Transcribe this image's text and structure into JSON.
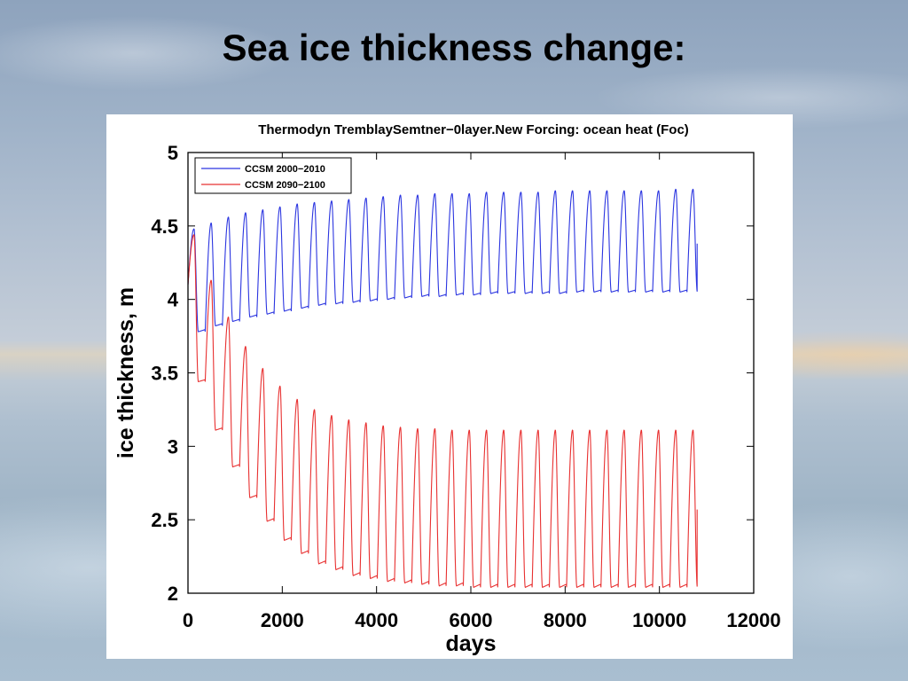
{
  "slide": {
    "title": "Sea ice thickness change:"
  },
  "colors": {
    "series_1": "#2b35e0",
    "series_2": "#e83030"
  },
  "chart_data": {
    "type": "line",
    "title": "Thermodyn TremblaySemtner−0layer.New Forcing: ocean heat (Foc)",
    "xlabel": "days",
    "ylabel": "ice thickness, m",
    "xlim": [
      0,
      12000
    ],
    "ylim": [
      2,
      5
    ],
    "xticks": [
      0,
      2000,
      4000,
      6000,
      8000,
      10000,
      12000
    ],
    "yticks": [
      2,
      2.5,
      3,
      3.5,
      4,
      4.5,
      5
    ],
    "xtick_labels": [
      "0",
      "2000",
      "4000",
      "6000",
      "8000",
      "10000",
      "12000"
    ],
    "ytick_labels": [
      "2",
      "2.5",
      "3",
      "3.5",
      "4",
      "4.5",
      "5"
    ],
    "grid": false,
    "legend_position": "top-left",
    "period_days": 365,
    "series": [
      {
        "name": "CCSM 2000−2010",
        "color": "#2b35e0",
        "start_value": 4.1,
        "end_value": 4.38,
        "end_day": 10800,
        "annual_max": [
          4.48,
          4.52,
          4.56,
          4.59,
          4.61,
          4.63,
          4.65,
          4.66,
          4.67,
          4.68,
          4.69,
          4.7,
          4.71,
          4.71,
          4.72,
          4.72,
          4.72,
          4.73,
          4.73,
          4.73,
          4.73,
          4.74,
          4.74,
          4.74,
          4.74,
          4.74,
          4.74,
          4.74,
          4.75,
          4.75
        ],
        "annual_min": [
          3.78,
          3.82,
          3.85,
          3.88,
          3.9,
          3.92,
          3.94,
          3.96,
          3.97,
          3.98,
          3.99,
          4.0,
          4.01,
          4.02,
          4.02,
          4.03,
          4.03,
          4.04,
          4.04,
          4.04,
          4.04,
          4.04,
          4.05,
          4.05,
          4.05,
          4.05,
          4.05,
          4.05,
          4.05,
          4.05
        ]
      },
      {
        "name": "CCSM 2090−2100",
        "color": "#e83030",
        "start_value": 4.1,
        "end_value": 2.57,
        "end_day": 10800,
        "annual_max": [
          4.44,
          4.13,
          3.88,
          3.68,
          3.53,
          3.41,
          3.32,
          3.25,
          3.21,
          3.18,
          3.16,
          3.14,
          3.13,
          3.12,
          3.12,
          3.11,
          3.11,
          3.11,
          3.11,
          3.11,
          3.11,
          3.11,
          3.11,
          3.11,
          3.11,
          3.11,
          3.11,
          3.11,
          3.11,
          3.11
        ],
        "annual_min": [
          3.44,
          3.11,
          2.86,
          2.65,
          2.49,
          2.36,
          2.27,
          2.2,
          2.16,
          2.12,
          2.1,
          2.08,
          2.07,
          2.06,
          2.05,
          2.05,
          2.04,
          2.04,
          2.04,
          2.04,
          2.04,
          2.04,
          2.04,
          2.04,
          2.04,
          2.04,
          2.04,
          2.04,
          2.04,
          2.04
        ]
      }
    ]
  }
}
